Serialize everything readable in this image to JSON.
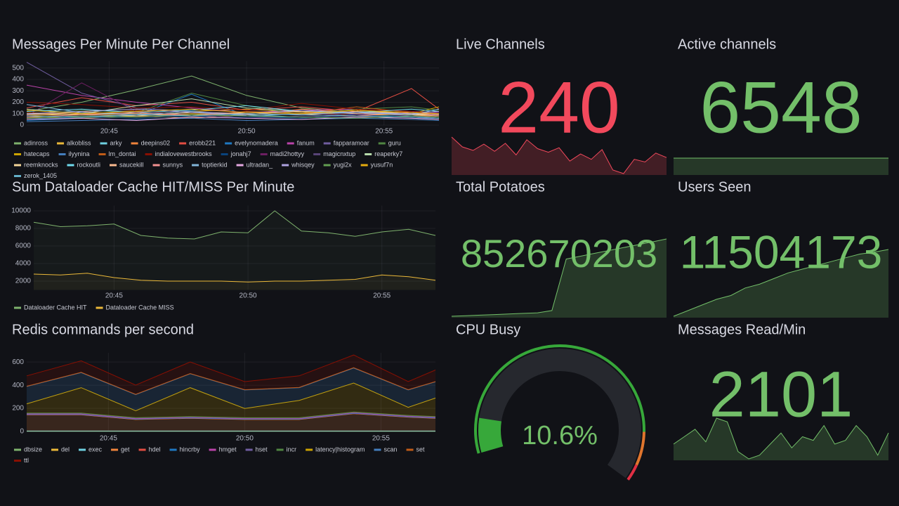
{
  "chart_data": [
    {
      "type": "line",
      "title": "Messages Per Minute Per Channel",
      "x": [
        "20:42",
        "20:44",
        "20:46",
        "20:48",
        "20:50",
        "20:52",
        "20:54",
        "20:56",
        "20:57"
      ],
      "xlim": [
        "20:42",
        "20:57"
      ],
      "xticks": [
        "20:45",
        "20:50",
        "20:55"
      ],
      "ylim": [
        0,
        560
      ],
      "yticks": [
        0,
        100,
        200,
        300,
        400,
        500
      ],
      "grid": true,
      "series": [
        {
          "name": "adinross",
          "color": "#7EB26D",
          "values": [
            120,
            200,
            310,
            430,
            260,
            150,
            110,
            120,
            90
          ]
        },
        {
          "name": "alkobliss",
          "color": "#EAB839",
          "values": [
            80,
            100,
            90,
            120,
            140,
            110,
            130,
            100,
            80
          ]
        },
        {
          "name": "arky",
          "color": "#6ED0E0",
          "values": [
            60,
            70,
            80,
            60,
            90,
            70,
            60,
            80,
            70
          ]
        },
        {
          "name": "deepins02",
          "color": "#EF843C",
          "values": [
            100,
            120,
            80,
            60,
            90,
            140,
            110,
            90,
            70
          ]
        },
        {
          "name": "erobb221",
          "color": "#E24D42",
          "values": [
            150,
            240,
            170,
            200,
            130,
            160,
            120,
            320,
            140
          ]
        },
        {
          "name": "evelynomadera",
          "color": "#1F78C1",
          "values": [
            40,
            60,
            90,
            270,
            80,
            60,
            100,
            70,
            50
          ]
        },
        {
          "name": "fanum",
          "color": "#BA43A9",
          "values": [
            350,
            260,
            200,
            150,
            110,
            130,
            140,
            120,
            110
          ]
        },
        {
          "name": "fapparamoar",
          "color": "#705DA0",
          "values": [
            550,
            280,
            150,
            120,
            100,
            90,
            110,
            80,
            60
          ]
        },
        {
          "name": "guru",
          "color": "#508642",
          "values": [
            90,
            130,
            110,
            280,
            170,
            90,
            140,
            160,
            130
          ]
        },
        {
          "name": "hatecaps",
          "color": "#CCA300",
          "values": [
            70,
            60,
            80,
            100,
            90,
            120,
            80,
            100,
            160
          ]
        },
        {
          "name": "ilyynina",
          "color": "#447EBC",
          "values": [
            30,
            40,
            50,
            60,
            40,
            50,
            60,
            50,
            40
          ]
        },
        {
          "name": "lm_dontai",
          "color": "#C15C17",
          "values": [
            110,
            90,
            130,
            80,
            120,
            100,
            160,
            110,
            90
          ]
        },
        {
          "name": "indialovewestbrooks",
          "color": "#890F02",
          "values": [
            200,
            180,
            150,
            160,
            130,
            190,
            140,
            120,
            100
          ]
        },
        {
          "name": "jonahj7",
          "color": "#0A437C",
          "values": [
            50,
            70,
            60,
            80,
            70,
            60,
            90,
            70,
            60
          ]
        },
        {
          "name": "madi2hottyy",
          "color": "#6D1F62",
          "values": [
            80,
            370,
            120,
            90,
            110,
            100,
            90,
            110,
            80
          ]
        },
        {
          "name": "magicnxtup",
          "color": "#584477",
          "values": [
            60,
            80,
            70,
            90,
            60,
            80,
            70,
            60,
            50
          ]
        },
        {
          "name": "reaperky7",
          "color": "#B7DBAB",
          "values": [
            140,
            100,
            170,
            230,
            150,
            120,
            110,
            90,
            100
          ]
        },
        {
          "name": "reemknocks",
          "color": "#F4D598",
          "values": [
            100,
            90,
            80,
            110,
            100,
            90,
            120,
            100,
            90
          ]
        },
        {
          "name": "rockoutli",
          "color": "#70DBED",
          "values": [
            120,
            140,
            110,
            130,
            170,
            120,
            110,
            140,
            120
          ]
        },
        {
          "name": "saucekill",
          "color": "#F9BA8F",
          "values": [
            90,
            110,
            100,
            90,
            110,
            120,
            100,
            90,
            80
          ]
        },
        {
          "name": "sunnys",
          "color": "#F29191",
          "values": [
            70,
            90,
            110,
            80,
            100,
            90,
            80,
            110,
            90
          ]
        },
        {
          "name": "toptierkid",
          "color": "#82B5D8",
          "values": [
            180,
            110,
            90,
            120,
            80,
            100,
            110,
            90,
            140
          ]
        },
        {
          "name": "ultradan_",
          "color": "#E5A8E2",
          "values": [
            50,
            60,
            40,
            70,
            60,
            50,
            70,
            60,
            50
          ]
        },
        {
          "name": "whisqey",
          "color": "#AEA2E0",
          "values": [
            100,
            120,
            140,
            110,
            90,
            130,
            110,
            100,
            120
          ]
        },
        {
          "name": "yugi2x",
          "color": "#629E51",
          "values": [
            60,
            80,
            70,
            90,
            80,
            70,
            60,
            80,
            70
          ]
        },
        {
          "name": "yusuf7n",
          "color": "#E5AC0E",
          "values": [
            130,
            100,
            120,
            140,
            110,
            100,
            130,
            110,
            100
          ]
        },
        {
          "name": "zerok_1405",
          "color": "#64B0C8",
          "values": [
            80,
            70,
            90,
            80,
            100,
            90,
            80,
            70,
            60
          ]
        }
      ]
    },
    {
      "type": "line",
      "title": "Sum Dataloader Cache HIT/MISS Per Minute",
      "x": [
        "20:42",
        "20:43",
        "20:44",
        "20:45",
        "20:46",
        "20:47",
        "20:48",
        "20:49",
        "20:50",
        "20:51",
        "20:52",
        "20:53",
        "20:54",
        "20:55",
        "20:56",
        "20:57"
      ],
      "xlim": [
        "20:42",
        "20:57"
      ],
      "xticks": [
        "20:45",
        "20:50",
        "20:55"
      ],
      "ylim": [
        1000,
        10600
      ],
      "yticks": [
        2000,
        4000,
        6000,
        8000,
        10000
      ],
      "grid": true,
      "series": [
        {
          "name": "Dataloader Cache HIT",
          "color": "#7EB26D",
          "values": [
            8700,
            8200,
            8300,
            8500,
            7200,
            6900,
            6800,
            7600,
            7500,
            10000,
            7700,
            7500,
            7100,
            7600,
            7900,
            7200
          ]
        },
        {
          "name": "Dataloader Cache MISS",
          "color": "#EAB839",
          "values": [
            2800,
            2700,
            2900,
            2400,
            2100,
            2000,
            2000,
            2000,
            1900,
            2000,
            2000,
            2100,
            2200,
            2700,
            2500,
            2100
          ]
        }
      ]
    },
    {
      "type": "area",
      "stacked": true,
      "title": "Redis commands per second",
      "x": [
        "20:42",
        "20:44",
        "20:46",
        "20:48",
        "20:50",
        "20:52",
        "20:54",
        "20:56",
        "20:57"
      ],
      "xlim": [
        "20:42",
        "20:57"
      ],
      "xticks": [
        "20:45",
        "20:50",
        "20:55"
      ],
      "ylim": [
        0,
        680
      ],
      "yticks": [
        0,
        200,
        400,
        600
      ],
      "grid": true,
      "series": [
        {
          "name": "dbsize",
          "color": "#7EB26D",
          "values": [
            2,
            2,
            2,
            2,
            2,
            2,
            2,
            2,
            2
          ]
        },
        {
          "name": "del",
          "color": "#EAB839",
          "values": [
            1,
            1,
            1,
            1,
            1,
            1,
            1,
            1,
            1
          ]
        },
        {
          "name": "exec",
          "color": "#6ED0E0",
          "values": [
            1,
            1,
            1,
            1,
            1,
            1,
            1,
            1,
            1
          ]
        },
        {
          "name": "get",
          "color": "#EF843C",
          "values": [
            140,
            140,
            100,
            110,
            100,
            100,
            150,
            120,
            110
          ]
        },
        {
          "name": "hdel",
          "color": "#E24D42",
          "values": [
            2,
            2,
            2,
            2,
            2,
            2,
            2,
            2,
            2
          ]
        },
        {
          "name": "hincrby",
          "color": "#1F78C1",
          "values": [
            1,
            1,
            1,
            1,
            1,
            1,
            1,
            1,
            1
          ]
        },
        {
          "name": "hmget",
          "color": "#BA43A9",
          "values": [
            5,
            5,
            5,
            5,
            5,
            5,
            5,
            5,
            5
          ]
        },
        {
          "name": "hset",
          "color": "#705DA0",
          "values": [
            5,
            5,
            5,
            5,
            5,
            5,
            5,
            5,
            5
          ]
        },
        {
          "name": "incr",
          "color": "#508642",
          "values": [
            2,
            2,
            2,
            2,
            2,
            2,
            2,
            2,
            2
          ]
        },
        {
          "name": "latency|histogram",
          "color": "#CCA300",
          "values": [
            80,
            220,
            60,
            250,
            80,
            150,
            250,
            70,
            160
          ]
        },
        {
          "name": "scan",
          "color": "#447EBC",
          "values": [
            150,
            130,
            140,
            120,
            160,
            110,
            130,
            150,
            140
          ]
        },
        {
          "name": "set",
          "color": "#C15C17",
          "values": [
            2,
            2,
            2,
            2,
            2,
            2,
            2,
            2,
            2
          ]
        },
        {
          "name": "ttl",
          "color": "#890F02",
          "values": [
            90,
            100,
            80,
            100,
            70,
            100,
            110,
            70,
            100
          ]
        }
      ]
    },
    {
      "type": "stat",
      "title": "Live Channels",
      "value": 240,
      "color": "#f2495c",
      "values": [
        263,
        252,
        248,
        255,
        247,
        256,
        243,
        260,
        250,
        246,
        251,
        236,
        244,
        238,
        249,
        226,
        222,
        238,
        235,
        245,
        240
      ]
    },
    {
      "type": "stat",
      "title": "Active channels",
      "value": 6548,
      "color": "#73bf69",
      "values": [
        6548,
        6548,
        6548,
        6548,
        6548,
        6548,
        6548,
        6548,
        6548,
        6548,
        6548,
        6548
      ]
    },
    {
      "type": "stat",
      "title": "Total Potatoes",
      "value": 852670203,
      "color": "#73bf69",
      "values": [
        852400000,
        852402000,
        852404000,
        852406000,
        852408000,
        852410000,
        852412000,
        852420000,
        852600000,
        852610000,
        852620000,
        852630000,
        852640000,
        852650000,
        852660000,
        852670203
      ]
    },
    {
      "type": "stat",
      "title": "Users Seen",
      "value": 11504173,
      "color": "#73bf69",
      "values": [
        11150000,
        11180000,
        11210000,
        11240000,
        11260000,
        11300000,
        11320000,
        11350000,
        11380000,
        11400000,
        11420000,
        11440000,
        11460000,
        11480000,
        11490000,
        11504173
      ]
    },
    {
      "type": "gauge",
      "title": "CPU Busy",
      "value": 10.6,
      "value_label": "10.6%",
      "range": [
        0,
        100
      ],
      "color": "#73bf69",
      "thresholds": [
        {
          "value": 0,
          "color": "#37a83a"
        },
        {
          "value": 85,
          "color": "#e0752d"
        },
        {
          "value": 95,
          "color": "#e02f44"
        }
      ]
    },
    {
      "type": "stat",
      "title": "Messages Read/Min",
      "value": 2101,
      "color": "#73bf69",
      "values": [
        1950,
        2050,
        2150,
        1980,
        2300,
        2250,
        1850,
        1750,
        1800,
        1950,
        2100,
        1900,
        2050,
        2000,
        2200,
        1950,
        2000,
        2200,
        2050,
        1800,
        2101
      ]
    }
  ]
}
